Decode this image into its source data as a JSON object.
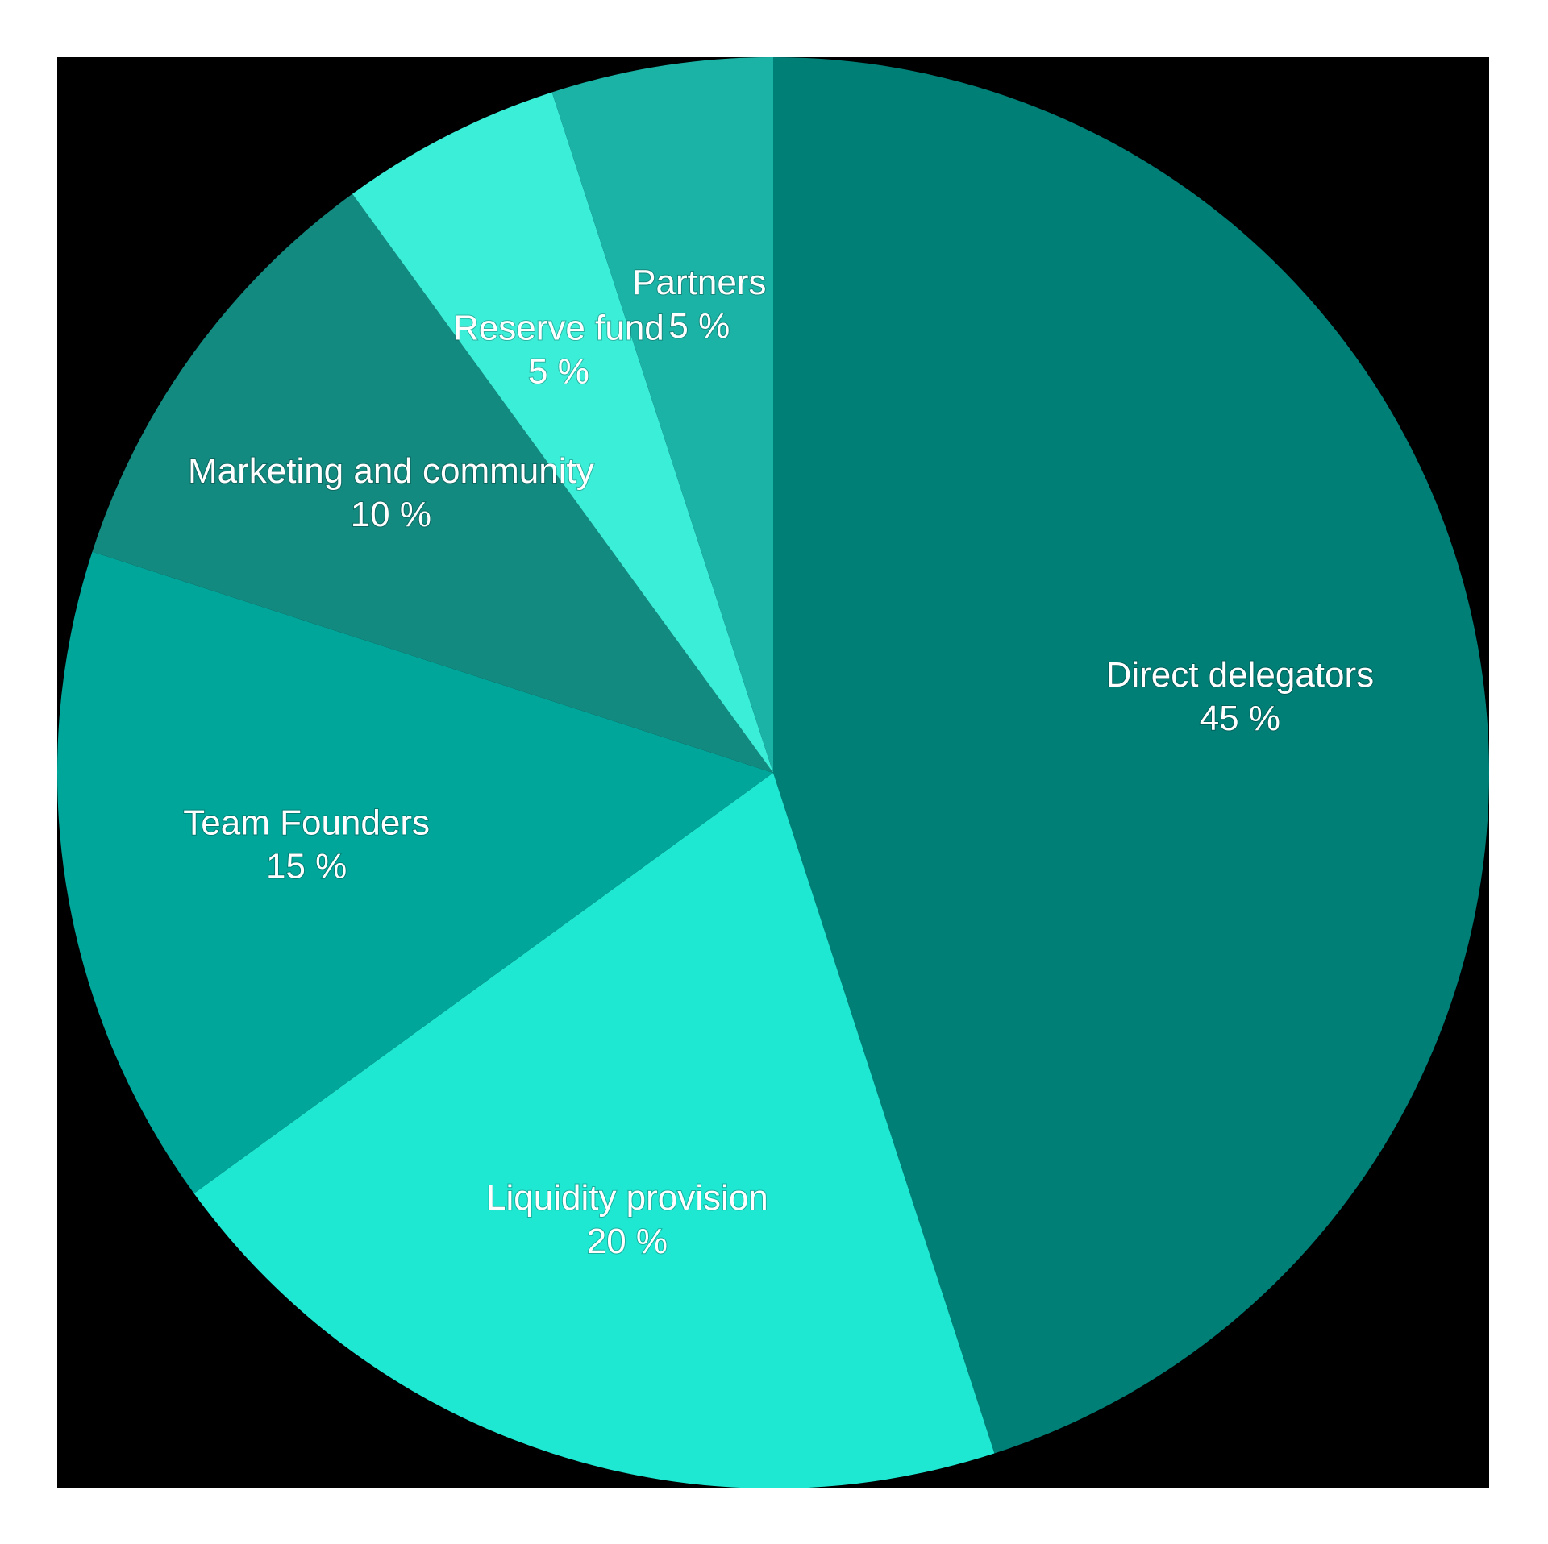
{
  "chart_data": {
    "type": "pie",
    "categories": [
      "Direct delegators",
      "Liquidity provision",
      "Team Founders",
      "Marketing and community",
      "Reserve fund",
      "Partners"
    ],
    "values": [
      45,
      20,
      15,
      10,
      5,
      5
    ],
    "value_labels": [
      "45 %",
      "20 %",
      "15 %",
      "10 %",
      "5 %",
      "5 %"
    ],
    "colors": [
      "#007f77",
      "#1ee8d2",
      "#00a69a",
      "#128a80",
      "#3aeed8",
      "#1bb3a6"
    ]
  }
}
